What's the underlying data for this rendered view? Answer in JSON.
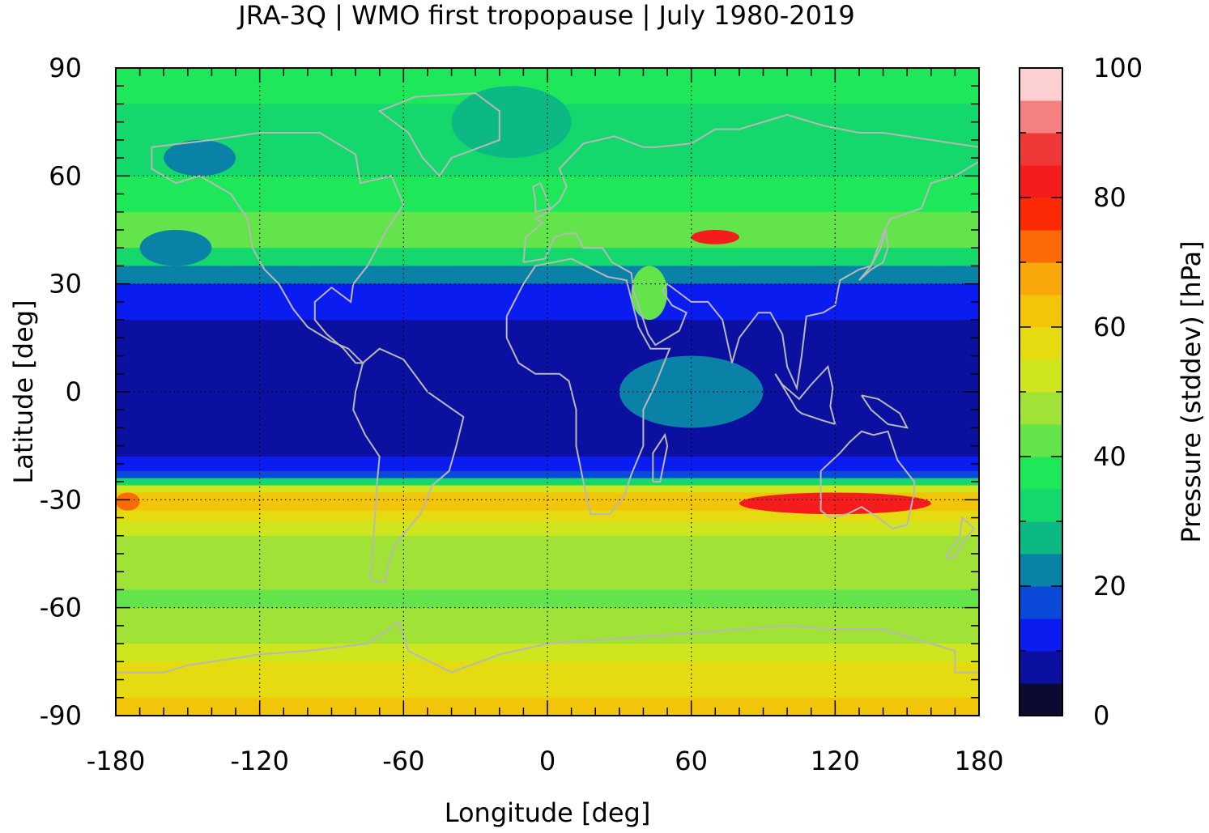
{
  "chart_data": {
    "type": "heatmap",
    "title": "JRA-3Q | WMO first tropopause | July 1980-2019",
    "xlabel": "Longitude [deg]",
    "ylabel": "Latitude [deg]",
    "xlim": [
      -180,
      180
    ],
    "ylim": [
      -90,
      90
    ],
    "x_ticks": [
      "-180",
      "-120",
      "-60",
      "0",
      "60",
      "120",
      "180"
    ],
    "y_ticks": [
      "90",
      "60",
      "30",
      "0",
      "-30",
      "-60",
      "-90"
    ],
    "grid": true,
    "colorbar": {
      "label": "Pressure (stddev) [hPa]",
      "range": [
        0,
        100
      ],
      "ticks": [
        "0",
        "20",
        "40",
        "60",
        "80",
        "100"
      ],
      "levels": [
        {
          "from": 0,
          "to": 5,
          "color": "#0a0a33"
        },
        {
          "from": 5,
          "to": 10,
          "color": "#0c10a0"
        },
        {
          "from": 10,
          "to": 15,
          "color": "#0a1cf0"
        },
        {
          "from": 15,
          "to": 20,
          "color": "#0b4ad8"
        },
        {
          "from": 20,
          "to": 25,
          "color": "#0a82a8"
        },
        {
          "from": 25,
          "to": 30,
          "color": "#0cb884"
        },
        {
          "from": 30,
          "to": 35,
          "color": "#14d86c"
        },
        {
          "from": 35,
          "to": 40,
          "color": "#1ee85a"
        },
        {
          "from": 40,
          "to": 45,
          "color": "#62e44a"
        },
        {
          "from": 45,
          "to": 50,
          "color": "#a0e236"
        },
        {
          "from": 50,
          "to": 55,
          "color": "#cfe51e"
        },
        {
          "from": 55,
          "to": 60,
          "color": "#e6da10"
        },
        {
          "from": 60,
          "to": 65,
          "color": "#f2c40a"
        },
        {
          "from": 65,
          "to": 70,
          "color": "#f8a808"
        },
        {
          "from": 70,
          "to": 75,
          "color": "#fc6a08"
        },
        {
          "from": 75,
          "to": 80,
          "color": "#fc2a04"
        },
        {
          "from": 80,
          "to": 85,
          "color": "#f41c1c"
        },
        {
          "from": 85,
          "to": 90,
          "color": "#ef3838"
        },
        {
          "from": 90,
          "to": 95,
          "color": "#f48080"
        },
        {
          "from": 95,
          "to": 100,
          "color": "#fcd0d0"
        }
      ]
    },
    "zonal_mean_profile": [
      {
        "lat": 90,
        "value": 38
      },
      {
        "lat": 80,
        "value": 37
      },
      {
        "lat": 70,
        "value": 32
      },
      {
        "lat": 60,
        "value": 32
      },
      {
        "lat": 50,
        "value": 40
      },
      {
        "lat": 45,
        "value": 48
      },
      {
        "lat": 40,
        "value": 38
      },
      {
        "lat": 35,
        "value": 30
      },
      {
        "lat": 30,
        "value": 16
      },
      {
        "lat": 20,
        "value": 9
      },
      {
        "lat": 10,
        "value": 7
      },
      {
        "lat": 0,
        "value": 7
      },
      {
        "lat": -10,
        "value": 7
      },
      {
        "lat": -18,
        "value": 8
      },
      {
        "lat": -22,
        "value": 12
      },
      {
        "lat": -24,
        "value": 20
      },
      {
        "lat": -26,
        "value": 42
      },
      {
        "lat": -28,
        "value": 58
      },
      {
        "lat": -30,
        "value": 68
      },
      {
        "lat": -33,
        "value": 60
      },
      {
        "lat": -36,
        "value": 52
      },
      {
        "lat": -40,
        "value": 48
      },
      {
        "lat": -45,
        "value": 47
      },
      {
        "lat": -50,
        "value": 46
      },
      {
        "lat": -55,
        "value": 44
      },
      {
        "lat": -60,
        "value": 44
      },
      {
        "lat": -65,
        "value": 46
      },
      {
        "lat": -70,
        "value": 52
      },
      {
        "lat": -75,
        "value": 56
      },
      {
        "lat": -80,
        "value": 58
      },
      {
        "lat": -85,
        "value": 61
      },
      {
        "lat": -90,
        "value": 62
      }
    ],
    "features": [
      {
        "lon_min": 60,
        "lon_max": 80,
        "lat_min": 41,
        "lat_max": 45,
        "value": 82
      },
      {
        "lon_min": 80,
        "lon_max": 160,
        "lat_min": -34,
        "lat_max": -28,
        "value": 82
      },
      {
        "lon_min": -180,
        "lon_max": -170,
        "lat_min": -33,
        "lat_max": -28,
        "value": 72
      },
      {
        "lon_min": 35,
        "lon_max": 50,
        "lat_min": 20,
        "lat_max": 35,
        "value": 42
      },
      {
        "lon_min": 30,
        "lon_max": 90,
        "lat_min": -10,
        "lat_max": 10,
        "value": 22
      },
      {
        "lon_min": -170,
        "lon_max": -140,
        "lat_min": 35,
        "lat_max": 45,
        "value": 22
      },
      {
        "lon_min": -160,
        "lon_max": -130,
        "lat_min": 60,
        "lat_max": 70,
        "value": 20
      },
      {
        "lon_min": -40,
        "lon_max": 10,
        "lat_min": 65,
        "lat_max": 85,
        "value": 28
      }
    ]
  }
}
